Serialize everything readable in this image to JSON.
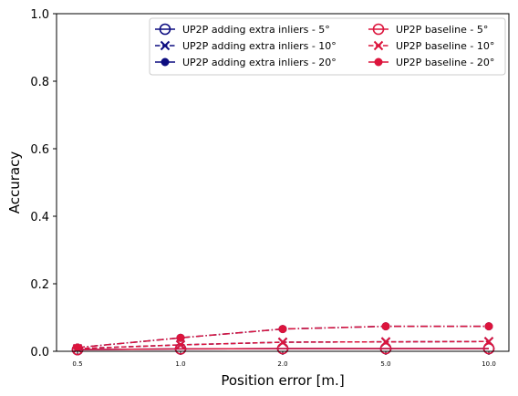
{
  "chart_data": {
    "type": "line",
    "xlabel": "Position error [m.]",
    "ylabel": "Accuracy",
    "categories": [
      "0.5",
      "1.0",
      "2.0",
      "5.0",
      "10.0"
    ],
    "yticks": [
      "0.0",
      "0.2",
      "0.4",
      "0.6",
      "0.8",
      "1.0"
    ],
    "ylim": [
      0,
      1
    ],
    "grid": false,
    "legend": {
      "placement": "top-right",
      "columns": 2
    },
    "series": [
      {
        "name": "UP2P adding extra inliers - 5°",
        "color": "#0d0d80",
        "linestyle": "solid",
        "marker": "open-circle",
        "values": [
          0.005,
          0.007,
          0.008,
          0.008,
          0.008
        ]
      },
      {
        "name": "UP2P adding extra inliers - 10°",
        "color": "#0d0d80",
        "linestyle": "dashed",
        "marker": "x",
        "values": [
          0.008,
          0.019,
          0.027,
          0.028,
          0.029
        ]
      },
      {
        "name": "UP2P adding extra inliers - 20°",
        "color": "#0d0d80",
        "linestyle": "dashdot",
        "marker": "filled-circle",
        "values": [
          0.011,
          0.04,
          0.066,
          0.074,
          0.074
        ]
      },
      {
        "name": "UP2P baseline - 5°",
        "color": "#dc143c",
        "linestyle": "solid",
        "marker": "open-circle",
        "values": [
          0.005,
          0.007,
          0.008,
          0.008,
          0.008
        ]
      },
      {
        "name": "UP2P baseline - 10°",
        "color": "#dc143c",
        "linestyle": "dashed",
        "marker": "x",
        "values": [
          0.008,
          0.019,
          0.027,
          0.028,
          0.029
        ]
      },
      {
        "name": "UP2P baseline - 20°",
        "color": "#dc143c",
        "linestyle": "dashdot",
        "marker": "filled-circle",
        "values": [
          0.011,
          0.04,
          0.066,
          0.074,
          0.074
        ]
      }
    ]
  }
}
